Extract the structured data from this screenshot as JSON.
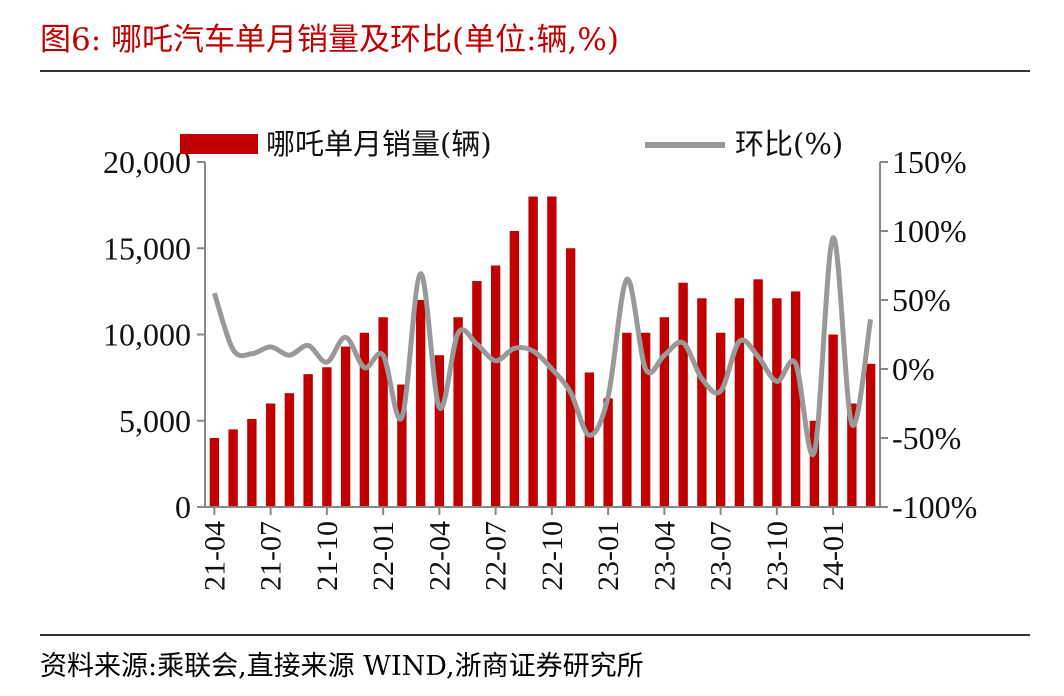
{
  "header": {
    "title": "图6:  哪吒汽车单月销量及环比(单位:辆,%)"
  },
  "footer": {
    "source": "资料来源:乘联会,直接来源 WIND,浙商证券研究所"
  },
  "chart_data": {
    "type": "bar",
    "title": "图6:  哪吒汽车单月销量及环比(单位:辆,%)",
    "xlabel": "",
    "ylabel": "",
    "grid": false,
    "legend_position": "top",
    "categories": [
      "21-04",
      "21-05",
      "21-06",
      "21-07",
      "21-08",
      "21-09",
      "21-10",
      "21-11",
      "21-12",
      "22-01",
      "22-02",
      "22-03",
      "22-04",
      "22-05",
      "22-06",
      "22-07",
      "22-08",
      "22-09",
      "22-10",
      "22-11",
      "22-12",
      "23-01",
      "23-02",
      "23-03",
      "23-04",
      "23-05",
      "23-06",
      "23-07",
      "23-08",
      "23-09",
      "23-10",
      "23-11",
      "23-12",
      "24-01",
      "24-02",
      "24-03"
    ],
    "tick_labels": [
      "21-04",
      "21-07",
      "21-10",
      "22-01",
      "22-04",
      "22-07",
      "22-10",
      "23-01",
      "23-04",
      "23-07",
      "23-10",
      "24-01"
    ],
    "series": [
      {
        "name": "哪吒单月销量(辆)",
        "kind": "bar",
        "axis": "left",
        "color": "#c00000",
        "values": [
          4000,
          4500,
          5100,
          6000,
          6600,
          7700,
          8100,
          9300,
          10100,
          11000,
          7100,
          12000,
          8800,
          11000,
          13100,
          14000,
          16000,
          18000,
          18000,
          15000,
          7800,
          6300,
          10100,
          10100,
          11000,
          13000,
          12100,
          10100,
          12100,
          13200,
          12100,
          12500,
          5000,
          10000,
          6000,
          8300
        ]
      },
      {
        "name": "环比(%)",
        "kind": "line",
        "axis": "right",
        "color": "#999999",
        "values": [
          55,
          14,
          11,
          16,
          10,
          17,
          5,
          23,
          1,
          10,
          -35,
          69,
          -28,
          26,
          18,
          6,
          15,
          13,
          0,
          -17,
          -48,
          -20,
          65,
          0,
          10,
          19,
          -7,
          -16,
          20,
          9,
          -9,
          4,
          -60,
          95,
          -40,
          36
        ]
      }
    ],
    "y_left": {
      "min": 0,
      "max": 20000,
      "ticks": [
        "0",
        "5,000",
        "10,000",
        "15,000",
        "20,000"
      ],
      "tick_values": [
        0,
        5000,
        10000,
        15000,
        20000
      ]
    },
    "y_right": {
      "min": -100,
      "max": 150,
      "ticks": [
        "-100%",
        "-50%",
        "0%",
        "50%",
        "100%",
        "150%"
      ],
      "tick_values": [
        -100,
        -50,
        0,
        50,
        100,
        150
      ]
    }
  }
}
